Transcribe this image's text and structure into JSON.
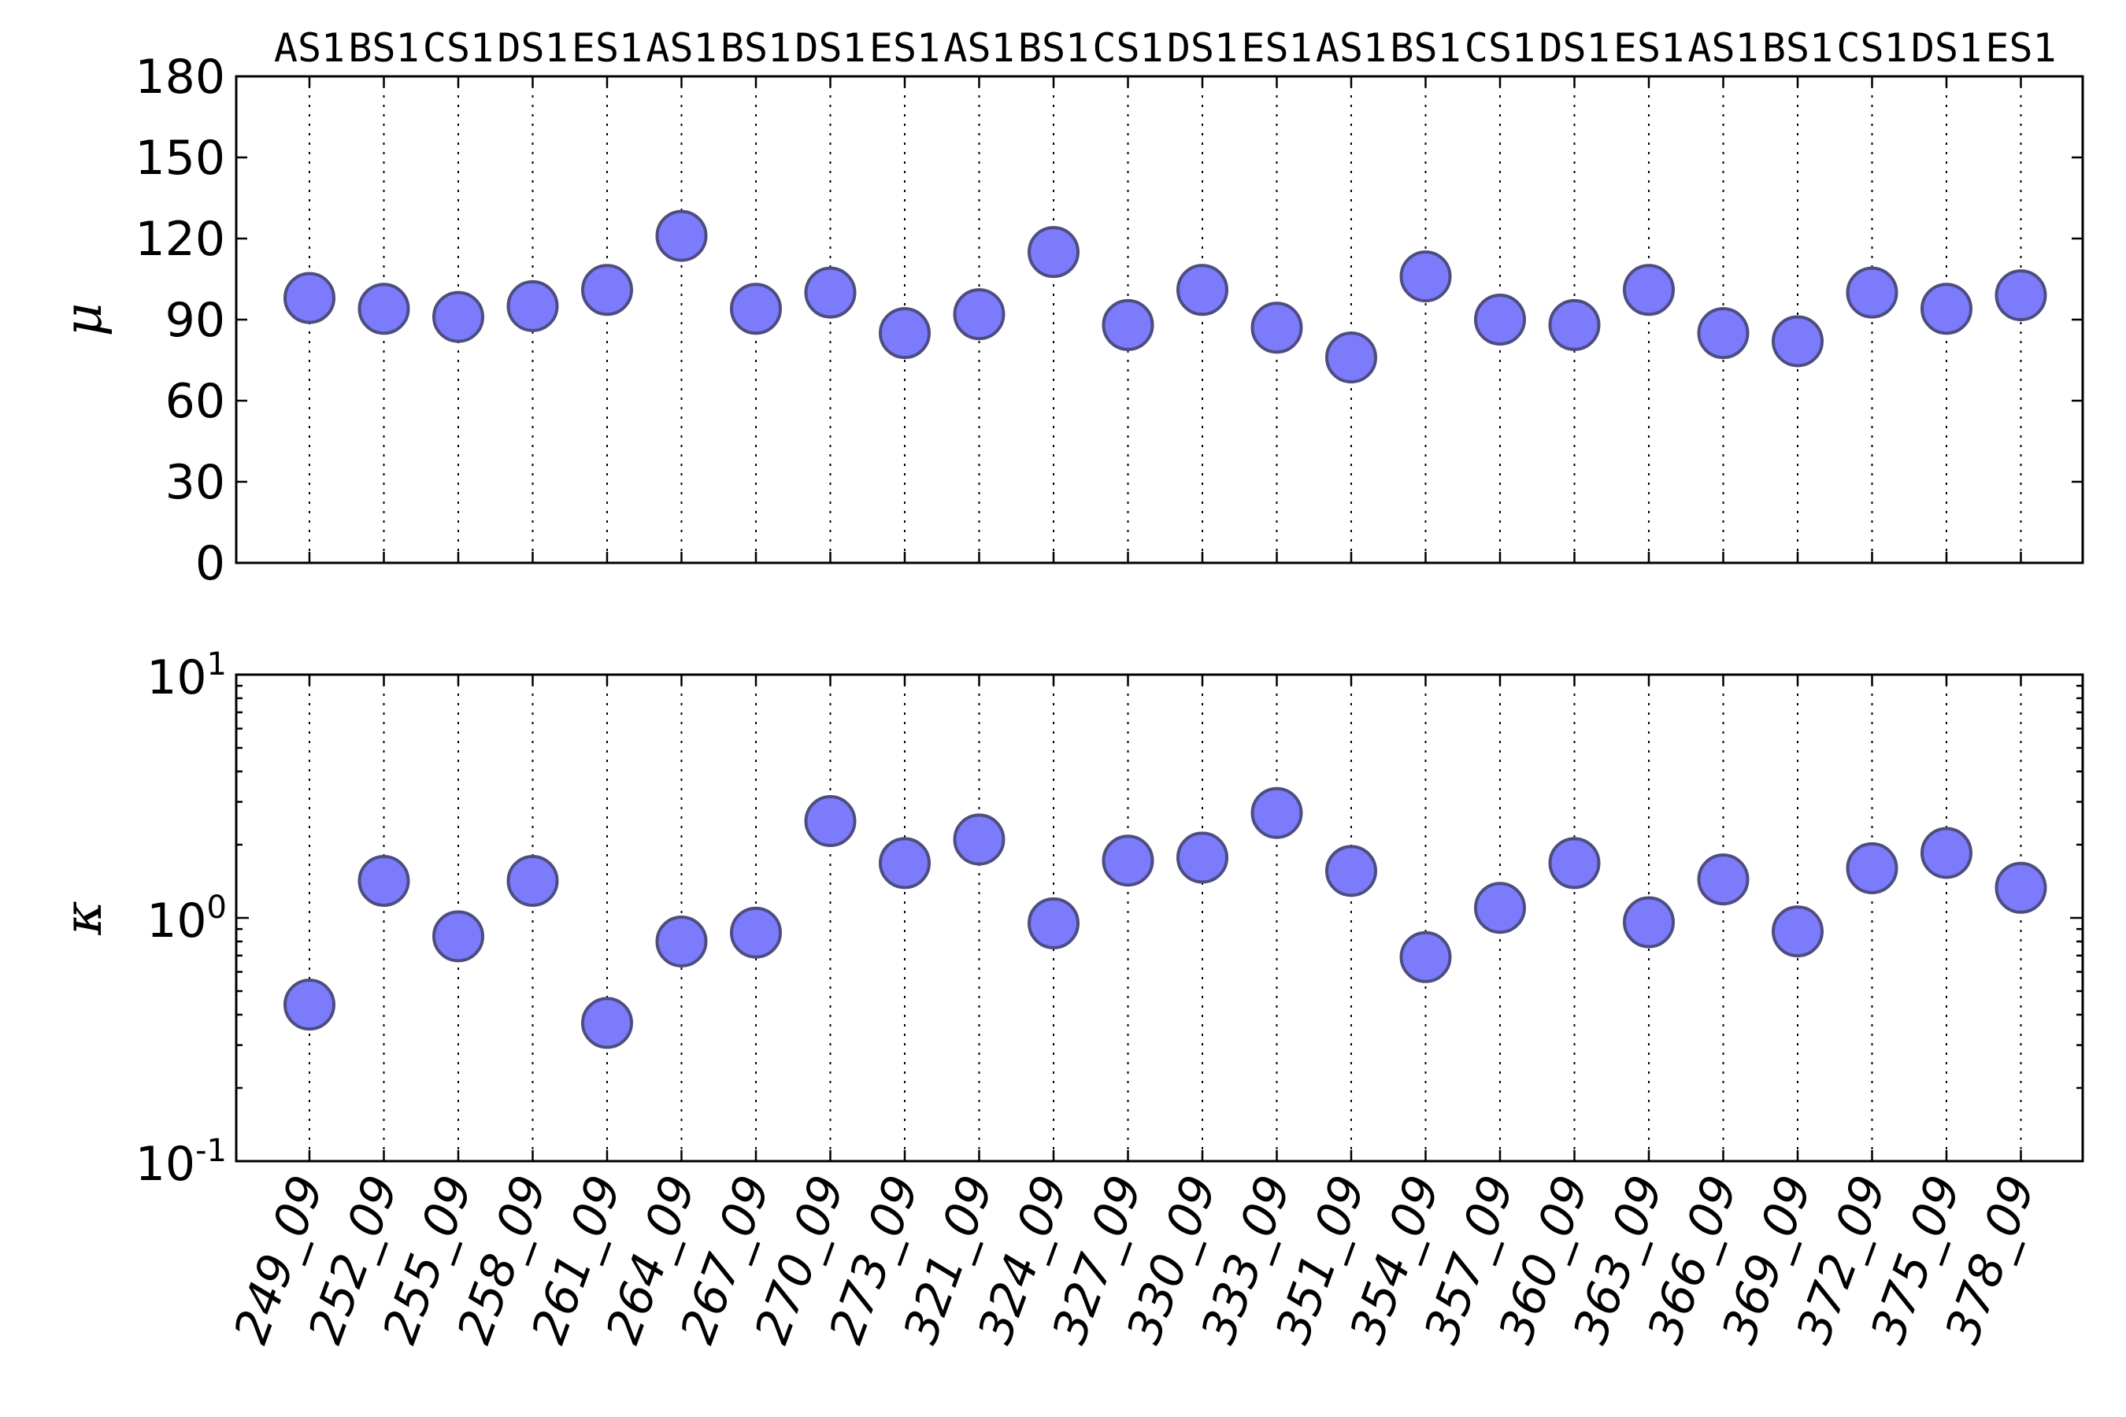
{
  "chart_data": [
    {
      "type": "scatter",
      "ylabel": "μ",
      "ylim": [
        0,
        180
      ],
      "yticks": [
        "0",
        "30",
        "60",
        "90",
        "120",
        "150",
        "180"
      ],
      "grid": "x-dotted",
      "top_labels": [
        "AS1",
        "BS1",
        "CS1",
        "DS1",
        "ES1",
        "AS1",
        "BS1",
        "DS1",
        "ES1",
        "AS1",
        "BS1",
        "CS1",
        "DS1",
        "ES1",
        "AS1",
        "BS1",
        "CS1",
        "DS1",
        "ES1",
        "AS1",
        "BS1",
        "CS1",
        "DS1",
        "ES1"
      ],
      "categories": [
        "249_09",
        "252_09",
        "255_09",
        "258_09",
        "261_09",
        "264_09",
        "267_09",
        "270_09",
        "273_09",
        "321_09",
        "324_09",
        "327_09",
        "330_09",
        "333_09",
        "351_09",
        "354_09",
        "357_09",
        "360_09",
        "363_09",
        "366_09",
        "369_09",
        "372_09",
        "375_09",
        "378_09"
      ],
      "values": [
        98,
        94,
        91,
        95,
        101,
        121,
        94,
        100,
        85,
        92,
        115,
        88,
        101,
        87,
        76,
        106,
        90,
        88,
        101,
        85,
        82,
        100,
        94,
        99
      ]
    },
    {
      "type": "scatter",
      "ylabel": "κ",
      "yscale": "log",
      "ylim": [
        0.1,
        10
      ],
      "yticks": [
        {
          "base": "10",
          "exp": "-1"
        },
        {
          "base": "10",
          "exp": "0"
        },
        {
          "base": "10",
          "exp": "1"
        }
      ],
      "grid": "x-dotted",
      "categories": [
        "249_09",
        "252_09",
        "255_09",
        "258_09",
        "261_09",
        "264_09",
        "267_09",
        "270_09",
        "273_09",
        "321_09",
        "324_09",
        "327_09",
        "330_09",
        "333_09",
        "351_09",
        "354_09",
        "357_09",
        "360_09",
        "363_09",
        "366_09",
        "369_09",
        "372_09",
        "375_09",
        "378_09"
      ],
      "values": [
        0.44,
        1.42,
        0.84,
        1.42,
        0.37,
        0.8,
        0.87,
        2.5,
        1.68,
        2.1,
        0.95,
        1.72,
        1.77,
        2.7,
        1.56,
        0.69,
        1.1,
        1.68,
        0.96,
        1.44,
        0.88,
        1.6,
        1.85,
        1.33
      ]
    }
  ],
  "colors": {
    "marker_fill": "#7b7bfb",
    "marker_edge": "#4d4d80"
  }
}
